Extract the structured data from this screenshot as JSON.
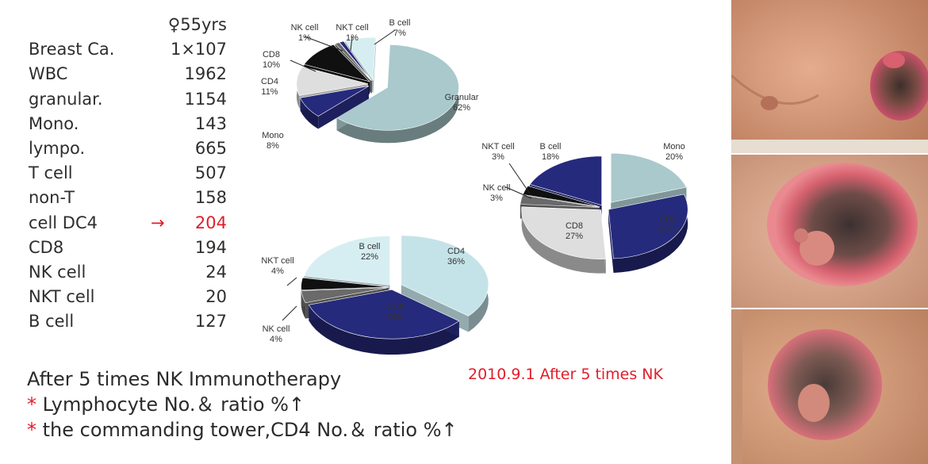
{
  "table": {
    "header": "♀55yrs",
    "rows": [
      {
        "label": "Breast Ca.",
        "value": "1×107"
      },
      {
        "label": "WBC",
        "value": "1962"
      },
      {
        "label": "granular.",
        "value": "1154"
      },
      {
        "label": "Mono.",
        "value": "143"
      },
      {
        "label": "lympo.",
        "value": "665"
      },
      {
        "label": "T cell",
        "value": "507"
      },
      {
        "label": "non-T",
        "value": "158"
      },
      {
        "label": "cell DC4",
        "value": "204",
        "arrow": "→"
      },
      {
        "label": "CD8",
        "value": "194"
      },
      {
        "label": "NK cell",
        "value": "24"
      },
      {
        "label": "NKT cell",
        "value": "20"
      },
      {
        "label": "B cell",
        "value": "127"
      }
    ]
  },
  "notes": {
    "line1": "After 5 times NK Immunotherapy",
    "line2_star": "*",
    "line2": " Lymphocyte No.＆ ratio %↑",
    "line3_star": "*",
    "line3": " the commanding tower,CD4 No.＆ ratio %↑"
  },
  "caption": "2010.9.1 After 5 times NK",
  "colors": {
    "light": "#a9c9cc",
    "dark_blue": "#262a7c",
    "black": "#101010",
    "gray": "#dcdcdc",
    "mid_gray": "#6a6a6a",
    "pale": "#d6eef2",
    "highlight_text": "#e11d2a"
  },
  "chart_data": [
    {
      "type": "pie",
      "title": "",
      "slices": [
        {
          "name": "Granular",
          "value": 62,
          "label": "62%",
          "color": "#a9c9cc",
          "explode": 1,
          "highlight": true
        },
        {
          "name": "Mono",
          "value": 8,
          "label": "8%",
          "color": "#262a7c"
        },
        {
          "name": "CD4",
          "value": 11,
          "label": "11%",
          "color": "#dedede"
        },
        {
          "name": "CD8",
          "value": 10,
          "label": "10%",
          "color": "#101010"
        },
        {
          "name": "NK cell",
          "value": 1,
          "label": "1%",
          "color": "#6a6a6a"
        },
        {
          "name": "NKT cell",
          "value": 1,
          "label": "1%",
          "color": "#262a7c"
        },
        {
          "name": "B cell",
          "value": 7,
          "label": "7%",
          "color": "#d6eef2"
        }
      ]
    },
    {
      "type": "pie",
      "title": "",
      "slices": [
        {
          "name": "Mono",
          "value": 20,
          "label": "20%",
          "color": "#a9c9cc"
        },
        {
          "name": "CD4",
          "value": 29,
          "label": "29%",
          "color": "#262a7c",
          "light_text": true
        },
        {
          "name": "CD8",
          "value": 27,
          "label": "27%",
          "color": "#dedede",
          "highlight": true
        },
        {
          "name": "NK cell",
          "value": 3,
          "label": "3%",
          "color": "#6a6a6a"
        },
        {
          "name": "NKT cell",
          "value": 3,
          "label": "3%",
          "color": "#101010"
        },
        {
          "name": "B cell",
          "value": 18,
          "label": "18%",
          "color": "#262a7c"
        }
      ]
    },
    {
      "type": "pie",
      "title": "",
      "slices": [
        {
          "name": "CD4",
          "value": 36,
          "label": "36%",
          "color": "#c4e3e8",
          "highlight": true
        },
        {
          "name": "CD8",
          "value": 34,
          "label": "34%",
          "color": "#262a7c",
          "light_text": true
        },
        {
          "name": "NK cell",
          "value": 4,
          "label": "4%",
          "color": "#6a6a6a"
        },
        {
          "name": "NKT cell",
          "value": 4,
          "label": "4%",
          "color": "#101010"
        },
        {
          "name": "B cell",
          "value": 22,
          "label": "22%",
          "color": "#d6eef2",
          "highlight": true
        }
      ]
    }
  ],
  "photos": [
    {
      "name": "photo-top"
    },
    {
      "name": "photo-middle"
    },
    {
      "name": "photo-bottom"
    }
  ]
}
